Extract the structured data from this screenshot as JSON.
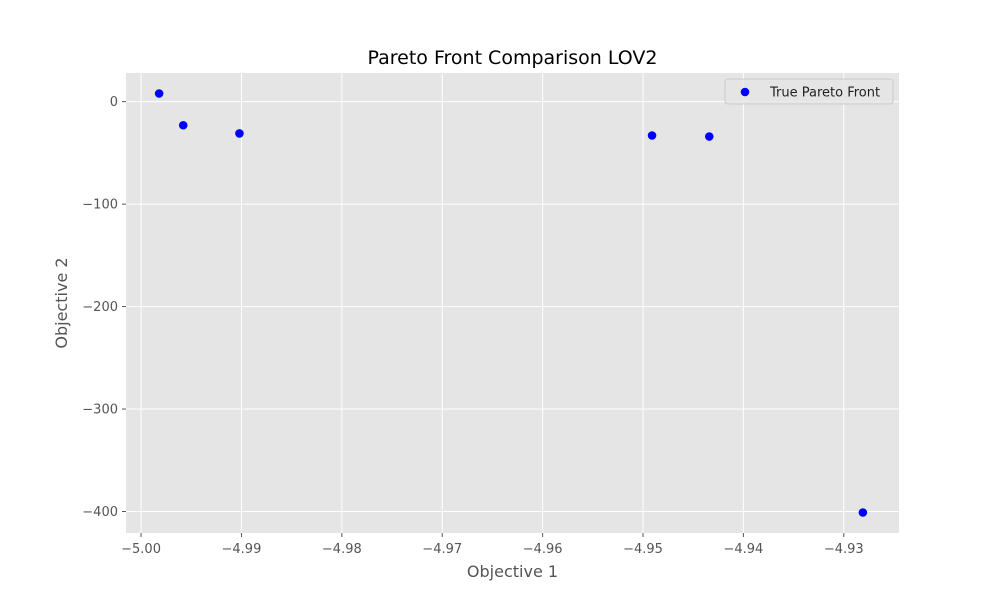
{
  "chart_data": {
    "type": "scatter",
    "title": "Pareto Front Comparison LOV2",
    "xlabel": "Objective 1",
    "ylabel": "Objective 2",
    "xlim": [
      -5.0015,
      -4.9245
    ],
    "ylim": [
      -421,
      28
    ],
    "xticks": [
      -5.0,
      -4.99,
      -4.98,
      -4.97,
      -4.96,
      -4.95,
      -4.94,
      -4.93
    ],
    "xtick_labels": [
      "−5.00",
      "−4.99",
      "−4.98",
      "−4.97",
      "−4.96",
      "−4.95",
      "−4.94",
      "−4.93"
    ],
    "yticks": [
      0,
      -100,
      -200,
      -300,
      -400
    ],
    "ytick_labels": [
      "0",
      "−100",
      "−200",
      "−300",
      "−400"
    ],
    "grid": true,
    "legend": {
      "position": "top-right"
    },
    "series": [
      {
        "name": "True Pareto Front",
        "color": "#0000ff",
        "marker": "circle",
        "points": [
          {
            "x": -4.9982,
            "y": 8
          },
          {
            "x": -4.9958,
            "y": -23
          },
          {
            "x": -4.9902,
            "y": -31
          },
          {
            "x": -4.9491,
            "y": -33
          },
          {
            "x": -4.9434,
            "y": -34
          },
          {
            "x": -4.9281,
            "y": -401
          }
        ]
      }
    ],
    "colors": {
      "plot_background": "#e5e5e5",
      "grid": "#ffffff",
      "text": "#555555"
    }
  }
}
